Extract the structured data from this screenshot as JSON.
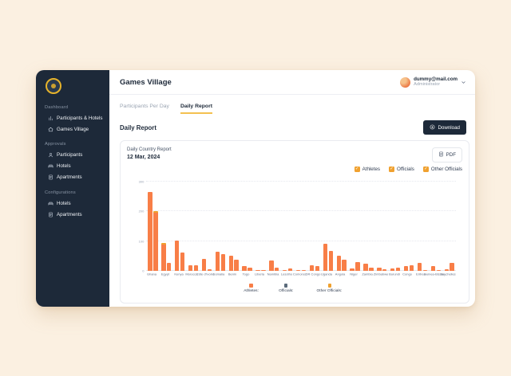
{
  "header": {
    "title": "Games Village",
    "user": {
      "email": "dummy@mail.com",
      "role": "Administrator"
    }
  },
  "sidebar": {
    "logo_icon": "games-logo-icon",
    "sections": [
      {
        "label": "Dashboard",
        "items": [
          {
            "label": "Participants & Hotels",
            "icon": "bar-chart-icon"
          },
          {
            "label": "Games Village",
            "icon": "home-icon"
          }
        ]
      },
      {
        "label": "Approvals",
        "items": [
          {
            "label": "Participants",
            "icon": "person-icon"
          },
          {
            "label": "Hotels",
            "icon": "hotel-icon"
          },
          {
            "label": "Apartments",
            "icon": "apartment-icon"
          }
        ]
      },
      {
        "label": "Configurations",
        "items": [
          {
            "label": "Hotels",
            "icon": "hotel-icon"
          },
          {
            "label": "Apartments",
            "icon": "apartment-icon"
          }
        ]
      }
    ]
  },
  "tabs": [
    {
      "label": "Participants Per Day",
      "active": false
    },
    {
      "label": "Daily Report",
      "active": true
    }
  ],
  "report": {
    "title": "Daily Report",
    "download_label": "Download"
  },
  "card": {
    "subtitle": "Daily Country Report",
    "date": "12 Mar, 2024",
    "pdf_label": "PDF",
    "check_glyph": "✓",
    "checkbox_color": "#f0a12f",
    "filters": [
      {
        "label": "Athletes",
        "checked": true
      },
      {
        "label": "Officials",
        "checked": true
      },
      {
        "label": "Other Officials",
        "checked": true
      }
    ]
  },
  "chart_data": {
    "type": "bar",
    "title": "Daily Country Report",
    "date": "12 Mar, 2024",
    "xlabel": "",
    "ylabel": "",
    "ylim": [
      0,
      300
    ],
    "yticks": [
      0,
      100,
      200,
      300
    ],
    "grid": "dotted-horizontal",
    "bar_color": "#f87e47",
    "cap_color": "#f0a12f",
    "legend_position": "bottom-center",
    "legend": [
      {
        "label": "Athletes:",
        "color": "#f87e47"
      },
      {
        "label": "Officials:",
        "color": "#5b6b7b"
      },
      {
        "label": "Other Officials:",
        "color": "#f0a12f"
      }
    ],
    "groups": [
      {
        "country": "Ghana",
        "bars": [
          265,
          195
        ],
        "caps": [
          0,
          6
        ]
      },
      {
        "country": "Egypt",
        "bars": [
          88,
          27
        ],
        "caps": [
          6,
          0
        ]
      },
      {
        "country": "Kenya",
        "bars": [
          101,
          62
        ],
        "caps": [
          0,
          0
        ]
      },
      {
        "country": "Morocco",
        "bars": [
          20,
          18
        ],
        "caps": [
          0,
          0
        ]
      },
      {
        "country": "Côte d'Ivoire",
        "bars": [
          41,
          5
        ],
        "caps": [
          0,
          0
        ]
      },
      {
        "country": "Somalia",
        "bars": [
          65,
          57
        ],
        "caps": [
          0,
          0
        ]
      },
      {
        "country": "Benin",
        "bars": [
          50,
          37
        ],
        "caps": [
          0,
          0
        ]
      },
      {
        "country": "Togo",
        "bars": [
          15,
          10
        ],
        "caps": [
          0,
          0
        ]
      },
      {
        "country": "Liberia",
        "bars": [
          3,
          2
        ],
        "caps": [
          0,
          0
        ]
      },
      {
        "country": "Namibia",
        "bars": [
          35,
          12
        ],
        "caps": [
          0,
          0
        ]
      },
      {
        "country": "Lesotho",
        "bars": [
          4,
          8
        ],
        "caps": [
          0,
          0
        ]
      },
      {
        "country": "Comoros",
        "bars": [
          3,
          2
        ],
        "caps": [
          0,
          0
        ]
      },
      {
        "country": "DR Congo",
        "bars": [
          20,
          15
        ],
        "caps": [
          0,
          0
        ]
      },
      {
        "country": "Uganda",
        "bars": [
          92,
          68
        ],
        "caps": [
          0,
          0
        ]
      },
      {
        "country": "Angola",
        "bars": [
          50,
          38
        ],
        "caps": [
          0,
          0
        ]
      },
      {
        "country": "Niger",
        "bars": [
          8,
          30
        ],
        "caps": [
          0,
          0
        ]
      },
      {
        "country": "Zambia",
        "bars": [
          25,
          12
        ],
        "caps": [
          0,
          0
        ]
      },
      {
        "country": "Zimbabwe",
        "bars": [
          12,
          6
        ],
        "caps": [
          0,
          0
        ]
      },
      {
        "country": "Burundi",
        "bars": [
          8,
          12
        ],
        "caps": [
          0,
          0
        ]
      },
      {
        "country": "Congo",
        "bars": [
          15,
          20
        ],
        "caps": [
          0,
          0
        ]
      },
      {
        "country": "Eritrea",
        "bars": [
          28,
          3
        ],
        "caps": [
          0,
          0
        ]
      },
      {
        "country": "Guinea-Bissau",
        "bars": [
          15,
          2
        ],
        "caps": [
          0,
          0
        ]
      },
      {
        "country": "Seychelles",
        "bars": [
          5,
          28
        ],
        "caps": [
          0,
          0
        ]
      }
    ]
  }
}
